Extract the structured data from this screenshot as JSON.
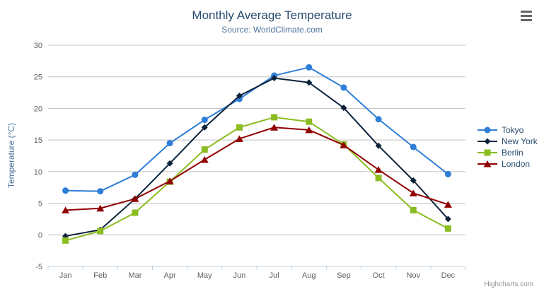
{
  "chart_data": {
    "type": "line",
    "title": "Monthly Average Temperature",
    "subtitle": "Source: WorldClimate.com",
    "xlabel": "",
    "ylabel": "Temperature (°C)",
    "ylim": [
      -5,
      30
    ],
    "ytick_step": 5,
    "grid": true,
    "legend_position": "right",
    "categories": [
      "Jan",
      "Feb",
      "Mar",
      "Apr",
      "May",
      "Jun",
      "Jul",
      "Aug",
      "Sep",
      "Oct",
      "Nov",
      "Dec"
    ],
    "series": [
      {
        "name": "Tokyo",
        "color": "#2f7ed8",
        "marker": "circle",
        "values": [
          7.0,
          6.9,
          9.5,
          14.5,
          18.2,
          21.5,
          25.2,
          26.5,
          23.3,
          18.3,
          13.9,
          9.6
        ]
      },
      {
        "name": "New York",
        "color": "#0d233a",
        "marker": "diamond",
        "values": [
          -0.2,
          0.8,
          5.7,
          11.3,
          17.0,
          22.0,
          24.8,
          24.1,
          20.1,
          14.1,
          8.6,
          2.5
        ]
      },
      {
        "name": "Berlin",
        "color": "#8bbc21",
        "marker": "square",
        "values": [
          -0.9,
          0.6,
          3.5,
          8.4,
          13.5,
          17.0,
          18.6,
          17.9,
          14.3,
          9.0,
          3.9,
          1.0
        ]
      },
      {
        "name": "London",
        "color": "#910000",
        "marker": "triangle",
        "values": [
          3.9,
          4.2,
          5.7,
          8.5,
          11.9,
          15.2,
          17.0,
          16.6,
          14.2,
          10.3,
          6.6,
          4.8
        ]
      }
    ]
  },
  "icons": {
    "context_menu": "hamburger-icon"
  },
  "credits": {
    "label": "Highcharts.com"
  }
}
